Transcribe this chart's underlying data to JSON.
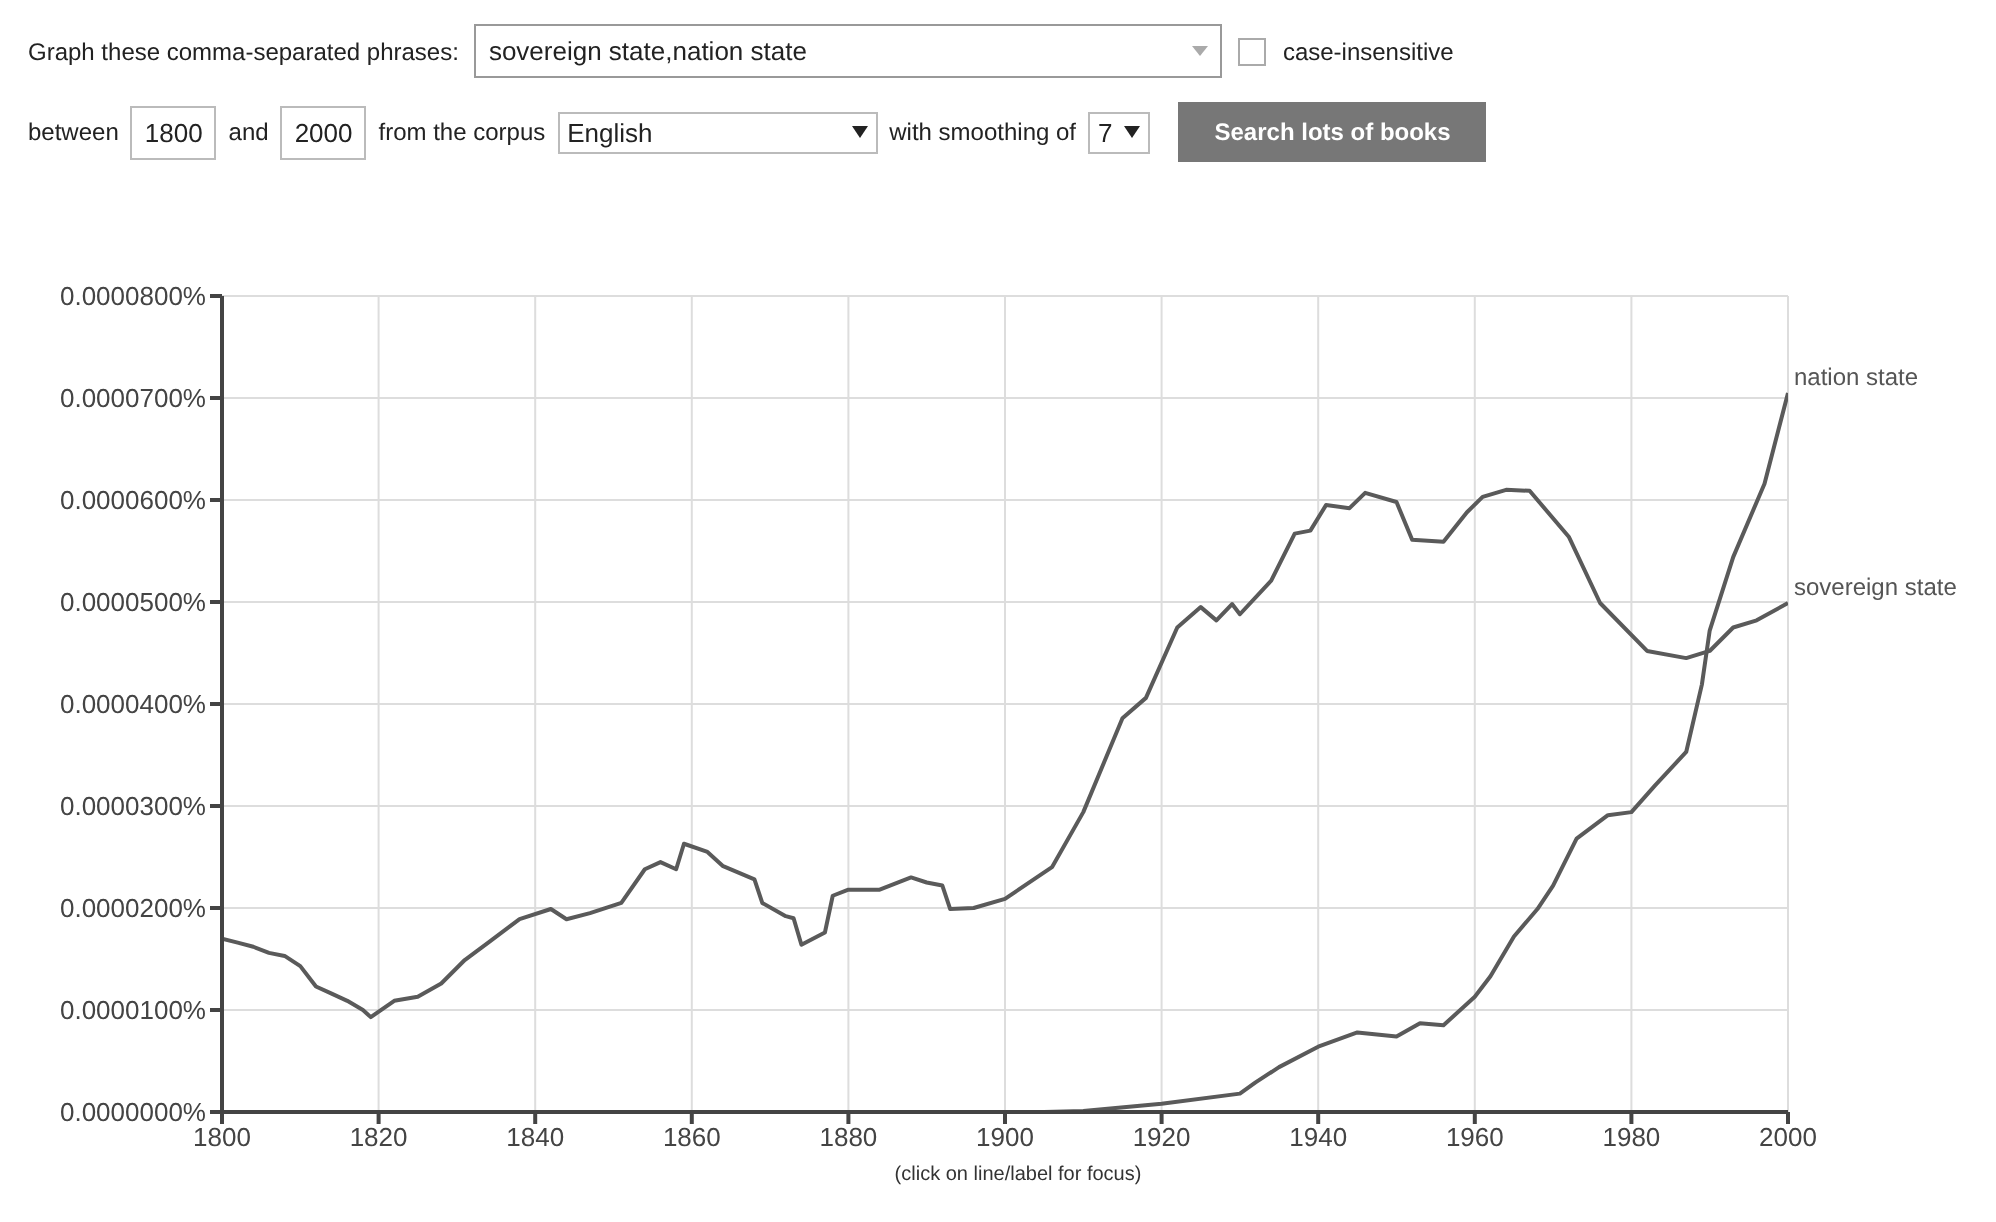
{
  "chart_data": {
    "type": "line",
    "legend": false,
    "grid": true,
    "marker": "none",
    "line_style": "solid",
    "xlim": [
      1800,
      2000
    ],
    "xticks": [
      1800,
      1820,
      1840,
      1860,
      1880,
      1900,
      1920,
      1940,
      1960,
      1980,
      2000
    ],
    "ylim": [
      0,
      8e-05
    ],
    "yticks": [
      {
        "value": 0,
        "label": "0.0000000%"
      },
      {
        "value": 1e-05,
        "label": "0.0000100%"
      },
      {
        "value": 2e-05,
        "label": "0.0000200%"
      },
      {
        "value": 3e-05,
        "label": "0.0000300%"
      },
      {
        "value": 4e-05,
        "label": "0.0000400%"
      },
      {
        "value": 5e-05,
        "label": "0.0000500%"
      },
      {
        "value": 6e-05,
        "label": "0.0000600%"
      },
      {
        "value": 7e-05,
        "label": "0.0000700%"
      },
      {
        "value": 8e-05,
        "label": "0.0000800%"
      }
    ],
    "series": [
      {
        "name": "nation state",
        "color": "#5a5a5a",
        "x": [
          1800,
          1905,
          1910,
          1920,
          1930,
          1932,
          1935,
          1940,
          1945,
          1950,
          1953,
          1956,
          1960,
          1962,
          1965,
          1968,
          1970,
          1973,
          1977,
          1980,
          1983,
          1987,
          1989,
          1990,
          1993,
          1997,
          2000
        ],
        "values": [
          0,
          0,
          1e-07,
          8e-07,
          1.8e-06,
          2.9e-06,
          4.4e-06,
          6.4e-06,
          7.8e-06,
          7.4e-06,
          8.7e-06,
          8.5e-06,
          1.13e-05,
          1.33e-05,
          1.72e-05,
          1.99e-05,
          2.22e-05,
          2.68e-05,
          2.91e-05,
          2.94e-05,
          3.2e-05,
          3.53e-05,
          4.19e-05,
          4.72e-05,
          5.44e-05,
          6.16e-05,
          7.05e-05
        ]
      },
      {
        "name": "sovereign state",
        "color": "#5a5a5a",
        "x": [
          1800,
          1802,
          1804,
          1806,
          1808,
          1810,
          1812,
          1814,
          1816,
          1818,
          1819,
          1822,
          1825,
          1828,
          1831,
          1834,
          1838,
          1842,
          1844,
          1847,
          1851,
          1854,
          1856,
          1858,
          1859,
          1862,
          1864,
          1868,
          1869,
          1872,
          1873,
          1874,
          1877,
          1878,
          1880,
          1884,
          1888,
          1890,
          1892,
          1893,
          1896,
          1900,
          1906,
          1910,
          1915,
          1918,
          1922,
          1925,
          1927,
          1929,
          1930,
          1934,
          1937,
          1939,
          1941,
          1944,
          1946,
          1950,
          1952,
          1956,
          1959,
          1961,
          1964,
          1967,
          1972,
          1976,
          1982,
          1987,
          1990,
          1993,
          1996,
          2000
        ],
        "values": [
          1.7e-05,
          1.66e-05,
          1.62e-05,
          1.56e-05,
          1.53e-05,
          1.43e-05,
          1.23e-05,
          1.16e-05,
          1.09e-05,
          1e-05,
          9.3e-06,
          1.09e-05,
          1.13e-05,
          1.26e-05,
          1.49e-05,
          1.66e-05,
          1.89e-05,
          1.99e-05,
          1.89e-05,
          1.95e-05,
          2.05e-05,
          2.38e-05,
          2.45e-05,
          2.38e-05,
          2.63e-05,
          2.55e-05,
          2.41e-05,
          2.28e-05,
          2.05e-05,
          1.92e-05,
          1.9e-05,
          1.64e-05,
          1.76e-05,
          2.12e-05,
          2.18e-05,
          2.18e-05,
          2.3e-05,
          2.25e-05,
          2.22e-05,
          1.99e-05,
          2e-05,
          2.09e-05,
          2.4e-05,
          2.94e-05,
          3.86e-05,
          4.06e-05,
          4.75e-05,
          4.95e-05,
          4.82e-05,
          4.98e-05,
          4.88e-05,
          5.21e-05,
          5.67e-05,
          5.7e-05,
          5.95e-05,
          5.92e-05,
          6.07e-05,
          5.98e-05,
          5.61e-05,
          5.59e-05,
          5.88e-05,
          6.03e-05,
          6.1e-05,
          6.09e-05,
          5.64e-05,
          4.99e-05,
          4.52e-05,
          4.45e-05,
          4.52e-05,
          4.75e-05,
          4.82e-05,
          4.99e-05
        ]
      }
    ],
    "annotations": [
      "Graph these comma-separated phrases:",
      "sovereign state,nation state",
      "case-insensitive",
      "between",
      "1800",
      "and",
      "2000",
      "from the corpus",
      "English",
      "with smoothing of",
      "7",
      "Search lots of books",
      "(click on line/label for focus)"
    ]
  }
}
